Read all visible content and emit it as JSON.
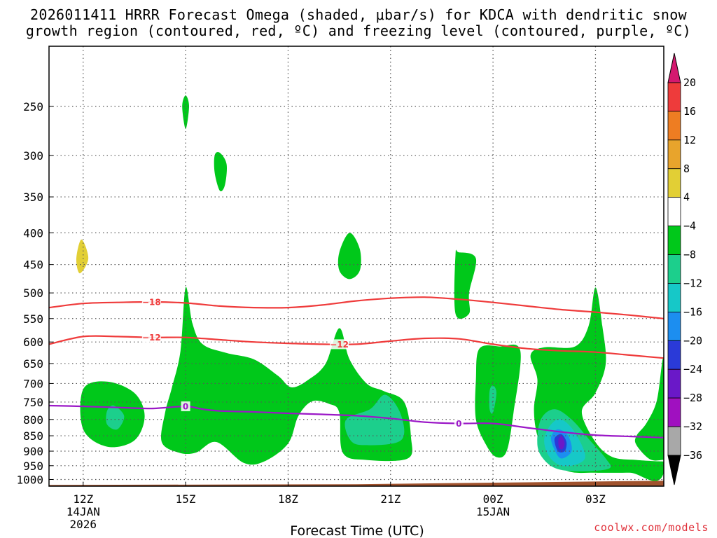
{
  "title_line1": "2026011411 HRRR Forecast Omega (shaded, μbar/s) for KDCA with dendritic snow",
  "title_line2": "growth region (contoured, red, ºC) and freezing level (contoured, purple, ºC)",
  "credit": "coolwx.com/models",
  "chart_data": {
    "type": "time-height cross section (filled contours + line contours)",
    "xlabel": "Forecast Time (UTC)",
    "ylabel": "",
    "x_ticks": [
      {
        "hour": 0,
        "label": "12Z",
        "sub1": "14JAN",
        "sub2": "2026"
      },
      {
        "hour": 3,
        "label": "15Z",
        "sub1": "",
        "sub2": ""
      },
      {
        "hour": 6,
        "label": "18Z",
        "sub1": "",
        "sub2": ""
      },
      {
        "hour": 9,
        "label": "21Z",
        "sub1": "",
        "sub2": ""
      },
      {
        "hour": 12,
        "label": "00Z",
        "sub1": "15JAN",
        "sub2": ""
      },
      {
        "hour": 15,
        "label": "03Z",
        "sub1": "",
        "sub2": ""
      }
    ],
    "x_range_hours": [
      -1,
      17
    ],
    "y_scale": "log-pressure (inverted)",
    "y_ticks_hpa": [
      250,
      300,
      350,
      400,
      450,
      500,
      550,
      600,
      650,
      700,
      750,
      800,
      850,
      900,
      950,
      1000
    ],
    "y_range_hpa": [
      200,
      1025
    ],
    "colorbar": {
      "units": "μbar/s",
      "labels": [
        "20",
        "16",
        "12",
        "8",
        "4",
        "−4",
        "−8",
        "−12",
        "−16",
        "−20",
        "−24",
        "−28",
        "−32",
        "−36"
      ],
      "bands": [
        {
          "range": ">20",
          "color": "#d4196f"
        },
        {
          "range": "16 to 20",
          "color": "#ee3b3b"
        },
        {
          "range": "12 to 16",
          "color": "#ee7d22"
        },
        {
          "range": "8 to 12",
          "color": "#e8a42c"
        },
        {
          "range": "4 to 8",
          "color": "#e2cf35"
        },
        {
          "range": "-4 to 4",
          "color": "#ffffff"
        },
        {
          "range": "-8 to -4",
          "color": "#00c81a"
        },
        {
          "range": "-12 to -8",
          "color": "#1ccf8c"
        },
        {
          "range": "-16 to -12",
          "color": "#16c8c8"
        },
        {
          "range": "-20 to -16",
          "color": "#1c8ef0"
        },
        {
          "range": "-24 to -20",
          "color": "#2a3ad8"
        },
        {
          "range": "-28 to -24",
          "color": "#6a18c8"
        },
        {
          "range": "-32 to -28",
          "color": "#a010c0"
        },
        {
          "range": "-36 to -32",
          "color": "#a8a8a8"
        },
        {
          "range": "<-36",
          "color": "#000000"
        }
      ]
    },
    "omega_regions": [
      {
        "level": "-4",
        "color": "#00c81a",
        "pts": [
          [
            2.9,
            250
          ],
          [
            3.0,
            240
          ],
          [
            3.1,
            250
          ],
          [
            3.0,
            272
          ]
        ]
      },
      {
        "level": "-4",
        "color": "#00c81a",
        "pts": [
          [
            3.85,
            300
          ],
          [
            4.0,
            297
          ],
          [
            4.2,
            310
          ],
          [
            4.15,
            335
          ],
          [
            4.0,
            342
          ],
          [
            3.85,
            320
          ]
        ]
      },
      {
        "level": "4",
        "color": "#e2cf35",
        "pts": [
          [
            -0.2,
            440
          ],
          [
            -0.05,
            410
          ],
          [
            0.15,
            440
          ],
          [
            -0.1,
            465
          ]
        ]
      },
      {
        "level": "-4",
        "color": "#00c81a",
        "pts": [
          [
            7.5,
            430
          ],
          [
            7.8,
            400
          ],
          [
            8.1,
            425
          ],
          [
            8.1,
            460
          ],
          [
            7.8,
            475
          ],
          [
            7.5,
            460
          ]
        ]
      },
      {
        "level": "-4",
        "color": "#00c81a",
        "pts": [
          [
            10.9,
            435
          ],
          [
            11.0,
            430
          ],
          [
            11.5,
            440
          ],
          [
            11.3,
            500
          ],
          [
            11.3,
            540
          ],
          [
            10.9,
            540
          ]
        ]
      },
      {
        "level": "-4",
        "color": "#00c81a",
        "pts": [
          [
            0.0,
            715
          ],
          [
            0.7,
            695
          ],
          [
            1.5,
            725
          ],
          [
            1.8,
            790
          ],
          [
            1.5,
            865
          ],
          [
            0.7,
            885
          ],
          [
            0.0,
            830
          ]
        ]
      },
      {
        "level": "-8",
        "color": "#1ccf8c",
        "pts": [
          [
            0.7,
            775
          ],
          [
            0.9,
            760
          ],
          [
            1.2,
            790
          ],
          [
            1.0,
            830
          ],
          [
            0.7,
            815
          ]
        ]
      },
      {
        "level": "-4",
        "color": "#00c81a",
        "pts": [
          [
            2.3,
            870
          ],
          [
            2.4,
            780
          ],
          [
            2.6,
            710
          ],
          [
            2.85,
            620
          ],
          [
            3.0,
            490
          ],
          [
            3.2,
            560
          ],
          [
            3.5,
            605
          ],
          [
            4.2,
            625
          ],
          [
            5.0,
            640
          ],
          [
            5.7,
            680
          ],
          [
            6.1,
            710
          ],
          [
            6.6,
            690
          ],
          [
            7.1,
            650
          ],
          [
            7.5,
            570
          ],
          [
            7.8,
            640
          ],
          [
            8.3,
            700
          ],
          [
            8.8,
            720
          ],
          [
            9.4,
            750
          ],
          [
            9.6,
            855
          ],
          [
            9.5,
            925
          ],
          [
            8.3,
            930
          ],
          [
            7.6,
            905
          ],
          [
            7.5,
            780
          ],
          [
            7.2,
            755
          ],
          [
            6.7,
            748
          ],
          [
            6.3,
            790
          ],
          [
            6.0,
            875
          ],
          [
            5.3,
            935
          ],
          [
            4.7,
            940
          ],
          [
            3.9,
            870
          ],
          [
            3.3,
            905
          ],
          [
            2.8,
            905
          ]
        ]
      },
      {
        "level": "-8",
        "color": "#1ccf8c",
        "pts": [
          [
            7.7,
            800
          ],
          [
            8.4,
            770
          ],
          [
            8.85,
            730
          ],
          [
            9.3,
            785
          ],
          [
            9.3,
            865
          ],
          [
            8.2,
            880
          ],
          [
            7.8,
            860
          ]
        ]
      },
      {
        "level": "-4",
        "color": "#00c81a",
        "pts": [
          [
            11.5,
            690
          ],
          [
            11.6,
            615
          ],
          [
            12.2,
            610
          ],
          [
            12.8,
            620
          ],
          [
            12.6,
            780
          ],
          [
            12.4,
            900
          ],
          [
            12.1,
            920
          ],
          [
            11.8,
            880
          ],
          [
            11.5,
            800
          ]
        ]
      },
      {
        "level": "-8",
        "color": "#1ccf8c",
        "pts": [
          [
            11.9,
            720
          ],
          [
            12.0,
            705
          ],
          [
            12.1,
            725
          ],
          [
            12.0,
            780
          ],
          [
            11.9,
            770
          ]
        ]
      },
      {
        "level": "-4",
        "color": "#00c81a",
        "pts": [
          [
            13.1,
            630
          ],
          [
            13.5,
            612
          ],
          [
            14.4,
            610
          ],
          [
            14.8,
            565
          ],
          [
            15.0,
            490
          ],
          [
            15.2,
            565
          ],
          [
            15.3,
            650
          ],
          [
            15.0,
            725
          ],
          [
            14.6,
            778
          ],
          [
            15.0,
            870
          ],
          [
            15.5,
            920
          ],
          [
            16.2,
            930
          ],
          [
            17.0,
            935
          ],
          [
            17.0,
            930
          ],
          [
            16.6,
            928
          ],
          [
            16.2,
            880
          ],
          [
            16.2,
            850
          ],
          [
            16.5,
            810
          ],
          [
            16.8,
            745
          ],
          [
            17.0,
            640
          ],
          [
            17.0,
            975
          ],
          [
            16.0,
            975
          ],
          [
            15.0,
            975
          ],
          [
            14.2,
            970
          ],
          [
            13.6,
            920
          ],
          [
            13.3,
            850
          ],
          [
            13.2,
            770
          ],
          [
            13.3,
            690
          ]
        ]
      },
      {
        "level": "-8",
        "color": "#1ccf8c",
        "pts": [
          [
            13.3,
            880
          ],
          [
            13.4,
            800
          ],
          [
            13.8,
            770
          ],
          [
            14.3,
            800
          ],
          [
            14.8,
            860
          ],
          [
            15.3,
            925
          ],
          [
            15.4,
            960
          ],
          [
            14.6,
            970
          ],
          [
            13.9,
            962
          ],
          [
            13.5,
            930
          ]
        ]
      },
      {
        "level": "-12",
        "color": "#16c8c8",
        "pts": [
          [
            13.5,
            860
          ],
          [
            13.7,
            815
          ],
          [
            14.0,
            800
          ],
          [
            14.4,
            840
          ],
          [
            14.7,
            920
          ],
          [
            14.3,
            950
          ],
          [
            13.9,
            945
          ],
          [
            13.6,
            910
          ]
        ]
      },
      {
        "level": "-16",
        "color": "#1c8ef0",
        "pts": [
          [
            13.7,
            855
          ],
          [
            13.9,
            830
          ],
          [
            14.2,
            850
          ],
          [
            14.3,
            900
          ],
          [
            14.0,
            925
          ],
          [
            13.8,
            895
          ]
        ]
      },
      {
        "level": "-20",
        "color": "#2a3ad8",
        "pts": [
          [
            13.8,
            860
          ],
          [
            14.0,
            845
          ],
          [
            14.15,
            870
          ],
          [
            14.1,
            900
          ],
          [
            13.9,
            900
          ]
        ]
      },
      {
        "level": "-24",
        "color": "#6a18c8",
        "pts": [
          [
            13.92,
            860
          ],
          [
            14.02,
            852
          ],
          [
            14.1,
            875
          ],
          [
            14.03,
            893
          ],
          [
            13.93,
            888
          ]
        ]
      }
    ],
    "contours": [
      {
        "name": "-18",
        "color": "#ef3b3b",
        "label": "−18",
        "pts": [
          [
            -1,
            528
          ],
          [
            0,
            520
          ],
          [
            1,
            518
          ],
          [
            2,
            517
          ],
          [
            3,
            519
          ],
          [
            4,
            525
          ],
          [
            5,
            528
          ],
          [
            6,
            528
          ],
          [
            7,
            523
          ],
          [
            8,
            515
          ],
          [
            9,
            510
          ],
          [
            10,
            508
          ],
          [
            11,
            512
          ],
          [
            12,
            518
          ],
          [
            13,
            525
          ],
          [
            14,
            532
          ],
          [
            15,
            537
          ],
          [
            16,
            543
          ],
          [
            17,
            550
          ]
        ]
      },
      {
        "name": "-12",
        "color": "#ef3b3b",
        "label": "−12",
        "pts": [
          [
            -1,
            605
          ],
          [
            0,
            588
          ],
          [
            1,
            588
          ],
          [
            2,
            590
          ],
          [
            3,
            590
          ],
          [
            4,
            595
          ],
          [
            5,
            600
          ],
          [
            6,
            603
          ],
          [
            7,
            605
          ],
          [
            8,
            605
          ],
          [
            9,
            598
          ],
          [
            10,
            592
          ],
          [
            11,
            593
          ],
          [
            12,
            605
          ],
          [
            13,
            615
          ],
          [
            14,
            620
          ],
          [
            15,
            623
          ],
          [
            16,
            630
          ],
          [
            17,
            637
          ]
        ]
      },
      {
        "name": "freezing level 0",
        "color": "#9b17c7",
        "label": "0",
        "pts": [
          [
            -1,
            760
          ],
          [
            0,
            762
          ],
          [
            1,
            765
          ],
          [
            2,
            768
          ],
          [
            3,
            762
          ],
          [
            3.5,
            770
          ],
          [
            4,
            775
          ],
          [
            5,
            778
          ],
          [
            6,
            782
          ],
          [
            7,
            785
          ],
          [
            8,
            789
          ],
          [
            9,
            797
          ],
          [
            10,
            808
          ],
          [
            11,
            812
          ],
          [
            12,
            812
          ],
          [
            13,
            825
          ],
          [
            14,
            838
          ],
          [
            15,
            848
          ],
          [
            16,
            852
          ],
          [
            17,
            856
          ]
        ]
      }
    ],
    "terrain": {
      "color": "#a0522d",
      "pressure_hpa": 1015
    }
  }
}
